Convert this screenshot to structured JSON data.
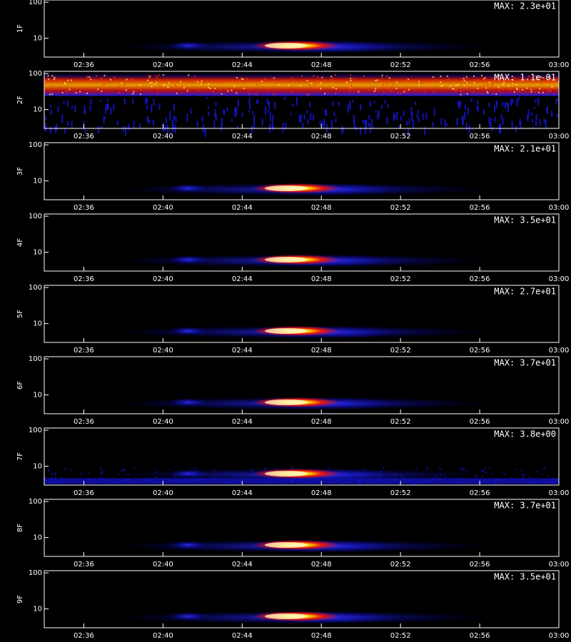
{
  "chart_data": [
    {
      "type": "heatmap",
      "ylabel": "1F",
      "annotation": "MAX: 2.3e+01",
      "pattern": "burst",
      "log_y": true,
      "ylim": [
        3,
        115
      ],
      "yticks": [
        10,
        100
      ],
      "xlim": [
        154,
        180
      ],
      "xticks": [
        {
          "value": 156,
          "label": "02:36"
        },
        {
          "value": 160,
          "label": "02:40"
        },
        {
          "value": 164,
          "label": "02:44"
        },
        {
          "value": 168,
          "label": "02:48"
        },
        {
          "value": 172,
          "label": "02:52"
        },
        {
          "value": 176,
          "label": "02:56"
        },
        {
          "value": 180,
          "label": "03:00"
        }
      ]
    },
    {
      "type": "heatmap",
      "ylabel": "2F",
      "annotation": "MAX: 1.1e-01",
      "pattern": "band",
      "log_y": true,
      "ylim": [
        3,
        115
      ],
      "yticks": [
        10,
        100
      ],
      "xlim": [
        154,
        180
      ],
      "xticks": [
        {
          "value": 156,
          "label": "02:36"
        },
        {
          "value": 160,
          "label": "02:40"
        },
        {
          "value": 164,
          "label": "02:44"
        },
        {
          "value": 168,
          "label": "02:48"
        },
        {
          "value": 172,
          "label": "02:52"
        },
        {
          "value": 176,
          "label": "02:56"
        },
        {
          "value": 180,
          "label": "03:00"
        }
      ]
    },
    {
      "type": "heatmap",
      "ylabel": "3F",
      "annotation": "MAX: 2.1e+01",
      "pattern": "burst",
      "log_y": true,
      "ylim": [
        3,
        115
      ],
      "yticks": [
        10,
        100
      ],
      "xlim": [
        154,
        180
      ],
      "xticks": [
        {
          "value": 156,
          "label": "02:36"
        },
        {
          "value": 160,
          "label": "02:40"
        },
        {
          "value": 164,
          "label": "02:44"
        },
        {
          "value": 168,
          "label": "02:48"
        },
        {
          "value": 172,
          "label": "02:52"
        },
        {
          "value": 176,
          "label": "02:56"
        },
        {
          "value": 180,
          "label": "03:00"
        }
      ]
    },
    {
      "type": "heatmap",
      "ylabel": "4F",
      "annotation": "MAX: 3.5e+01",
      "pattern": "burst",
      "log_y": true,
      "ylim": [
        3,
        115
      ],
      "yticks": [
        10,
        100
      ],
      "xlim": [
        154,
        180
      ],
      "xticks": [
        {
          "value": 156,
          "label": "02:36"
        },
        {
          "value": 160,
          "label": "02:40"
        },
        {
          "value": 164,
          "label": "02:44"
        },
        {
          "value": 168,
          "label": "02:48"
        },
        {
          "value": 172,
          "label": "02:52"
        },
        {
          "value": 176,
          "label": "02:56"
        },
        {
          "value": 180,
          "label": "03:00"
        }
      ]
    },
    {
      "type": "heatmap",
      "ylabel": "5F",
      "annotation": "MAX: 2.7e+01",
      "pattern": "burst",
      "log_y": true,
      "ylim": [
        3,
        115
      ],
      "yticks": [
        10,
        100
      ],
      "xlim": [
        154,
        180
      ],
      "xticks": [
        {
          "value": 156,
          "label": "02:36"
        },
        {
          "value": 160,
          "label": "02:40"
        },
        {
          "value": 164,
          "label": "02:44"
        },
        {
          "value": 168,
          "label": "02:48"
        },
        {
          "value": 172,
          "label": "02:52"
        },
        {
          "value": 176,
          "label": "02:56"
        },
        {
          "value": 180,
          "label": "03:00"
        }
      ]
    },
    {
      "type": "heatmap",
      "ylabel": "6F",
      "annotation": "MAX: 3.7e+01",
      "pattern": "burst",
      "log_y": true,
      "ylim": [
        3,
        115
      ],
      "yticks": [
        10,
        100
      ],
      "xlim": [
        154,
        180
      ],
      "xticks": [
        {
          "value": 156,
          "label": "02:36"
        },
        {
          "value": 160,
          "label": "02:40"
        },
        {
          "value": 164,
          "label": "02:44"
        },
        {
          "value": 168,
          "label": "02:48"
        },
        {
          "value": 172,
          "label": "02:52"
        },
        {
          "value": 176,
          "label": "02:56"
        },
        {
          "value": 180,
          "label": "03:00"
        }
      ]
    },
    {
      "type": "heatmap",
      "ylabel": "7F",
      "annotation": "MAX: 3.8e+00",
      "pattern": "noisy",
      "log_y": true,
      "ylim": [
        3,
        115
      ],
      "yticks": [
        10,
        100
      ],
      "xlim": [
        154,
        180
      ],
      "xticks": [
        {
          "value": 156,
          "label": "02:36"
        },
        {
          "value": 160,
          "label": "02:40"
        },
        {
          "value": 164,
          "label": "02:44"
        },
        {
          "value": 168,
          "label": "02:48"
        },
        {
          "value": 172,
          "label": "02:52"
        },
        {
          "value": 176,
          "label": "02:56"
        },
        {
          "value": 180,
          "label": "03:00"
        }
      ]
    },
    {
      "type": "heatmap",
      "ylabel": "8F",
      "annotation": "MAX: 3.7e+01",
      "pattern": "burst",
      "log_y": true,
      "ylim": [
        3,
        115
      ],
      "yticks": [
        10,
        100
      ],
      "xlim": [
        154,
        180
      ],
      "xticks": [
        {
          "value": 156,
          "label": "02:36"
        },
        {
          "value": 160,
          "label": "02:40"
        },
        {
          "value": 164,
          "label": "02:44"
        },
        {
          "value": 168,
          "label": "02:48"
        },
        {
          "value": 172,
          "label": "02:52"
        },
        {
          "value": 176,
          "label": "02:56"
        },
        {
          "value": 180,
          "label": "03:00"
        }
      ]
    },
    {
      "type": "heatmap",
      "ylabel": "9F",
      "annotation": "MAX: 3.5e+01",
      "pattern": "burst",
      "log_y": true,
      "ylim": [
        3,
        115
      ],
      "yticks": [
        10,
        100
      ],
      "xlim": [
        154,
        180
      ],
      "xticks": [
        {
          "value": 156,
          "label": "02:36"
        },
        {
          "value": 160,
          "label": "02:40"
        },
        {
          "value": 164,
          "label": "02:44"
        },
        {
          "value": 168,
          "label": "02:48"
        },
        {
          "value": 172,
          "label": "02:52"
        },
        {
          "value": 176,
          "label": "02:56"
        },
        {
          "value": 180,
          "label": "03:00"
        }
      ]
    }
  ]
}
